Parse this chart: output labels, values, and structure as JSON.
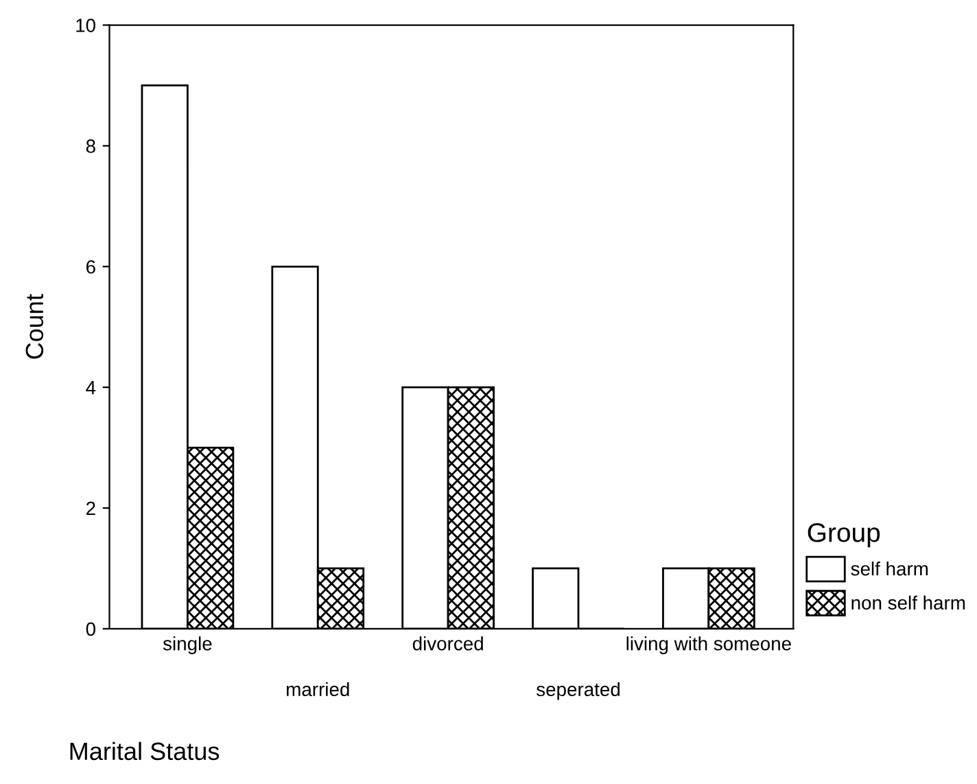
{
  "chart_data": {
    "type": "bar",
    "categories": [
      "single",
      "married",
      "divorced",
      "seperated",
      "living with someone"
    ],
    "series": [
      {
        "name": "self harm",
        "color": "#ffffff",
        "values": [
          9,
          6,
          4,
          1,
          1
        ]
      },
      {
        "name": "non self harm",
        "color": "#000000",
        "values": [
          3,
          1,
          4,
          0,
          1
        ]
      }
    ],
    "xlabel": "Marital Status",
    "ylabel": "Count",
    "legend_title": "Group",
    "legend": "right",
    "grid": false,
    "ylim": [
      0,
      10
    ],
    "yticks": [
      0,
      2,
      4,
      6,
      8,
      10
    ]
  }
}
